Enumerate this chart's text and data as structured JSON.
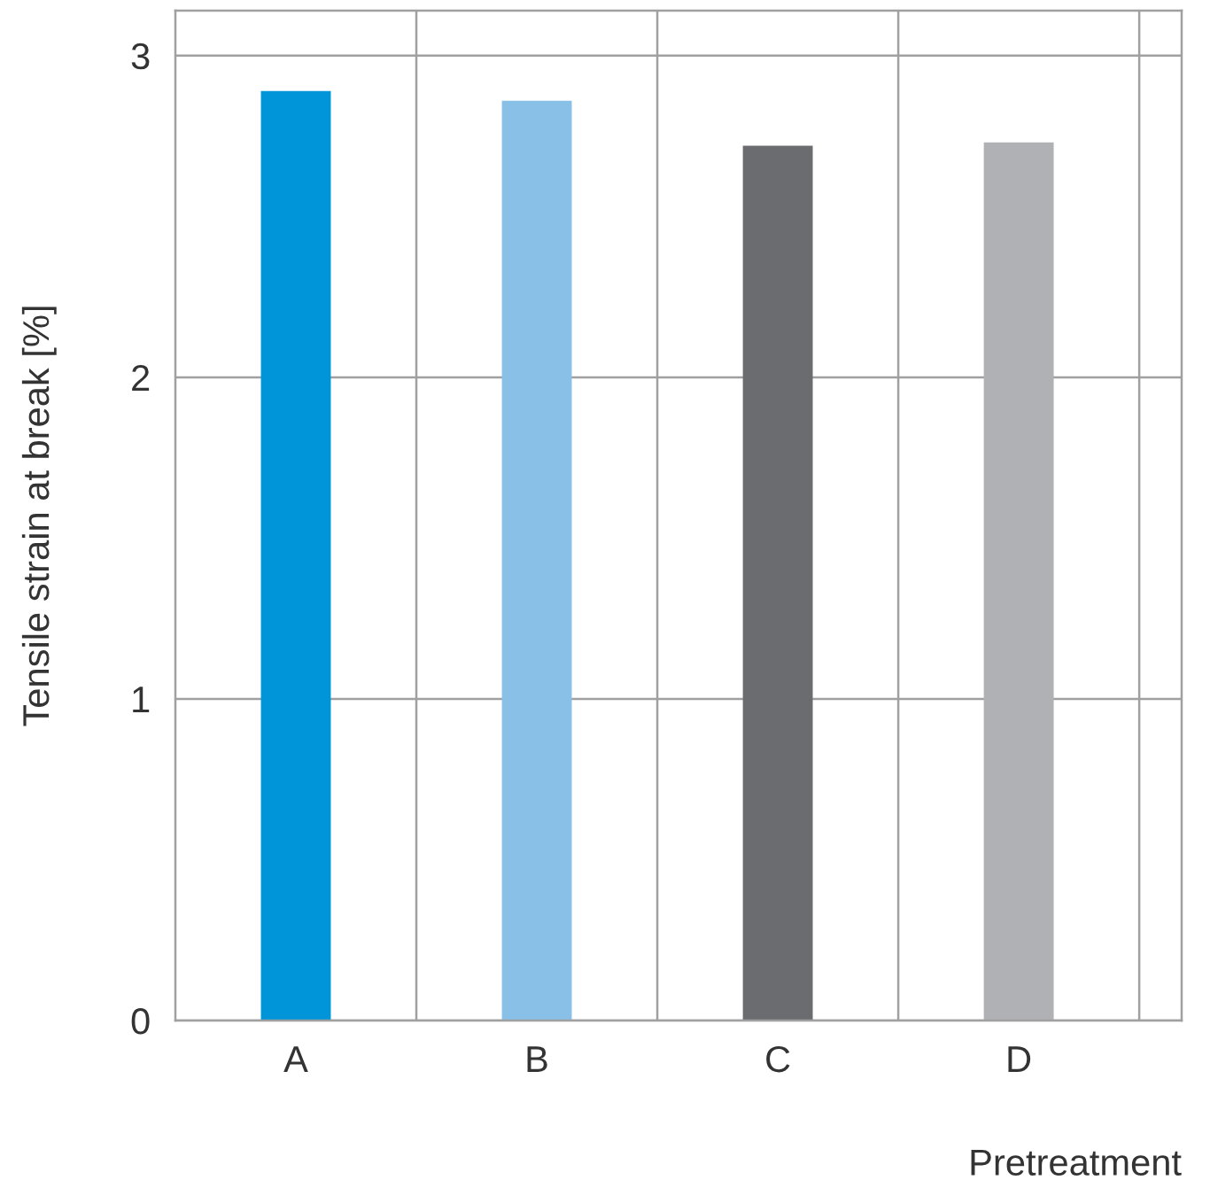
{
  "chart_data": {
    "type": "bar",
    "xlabel": "Pretreatment",
    "ylabel": "Tensile strain at break [%]",
    "categories": [
      "A",
      "B",
      "C",
      "D"
    ],
    "values": [
      2.89,
      2.86,
      2.72,
      2.73
    ],
    "colors": [
      "#0095d9",
      "#89c0e8",
      "#6b6c70",
      "#b0b1b5"
    ],
    "ylim": [
      0,
      3.14
    ],
    "yticks": [
      0,
      1,
      2,
      3
    ],
    "grid": true
  }
}
